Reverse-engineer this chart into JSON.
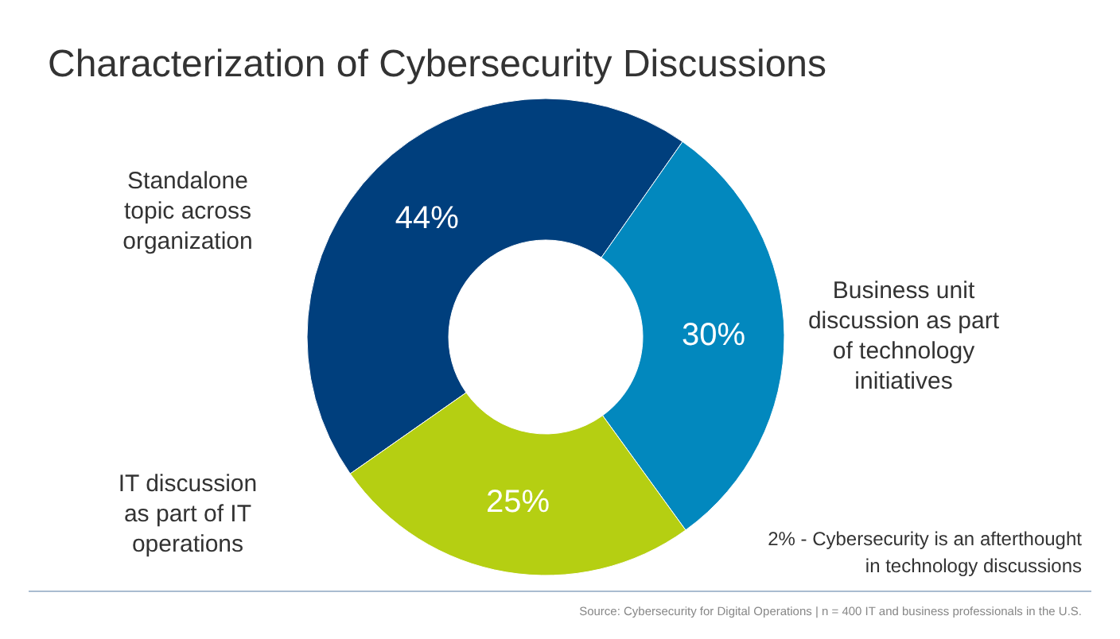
{
  "chart_data": {
    "type": "donut",
    "title": "Characterization of Cybersecurity Discussions",
    "categories": [
      "Standalone topic across organization",
      "Business unit discussion as part of technology initiatives",
      "IT discussion as part of IT operations"
    ],
    "values": [
      44,
      30,
      25
    ],
    "colors": [
      "#003f7d",
      "#0288be",
      "#b5cf12"
    ],
    "value_labels": [
      "44%",
      "30%",
      "25%"
    ],
    "annotations": [
      "2% - Cybersecurity is an afterthought in technology discussions",
      "Source: Cybersecurity for Digital Operations | n = 400 IT and business professionals in the U.S."
    ]
  }
}
